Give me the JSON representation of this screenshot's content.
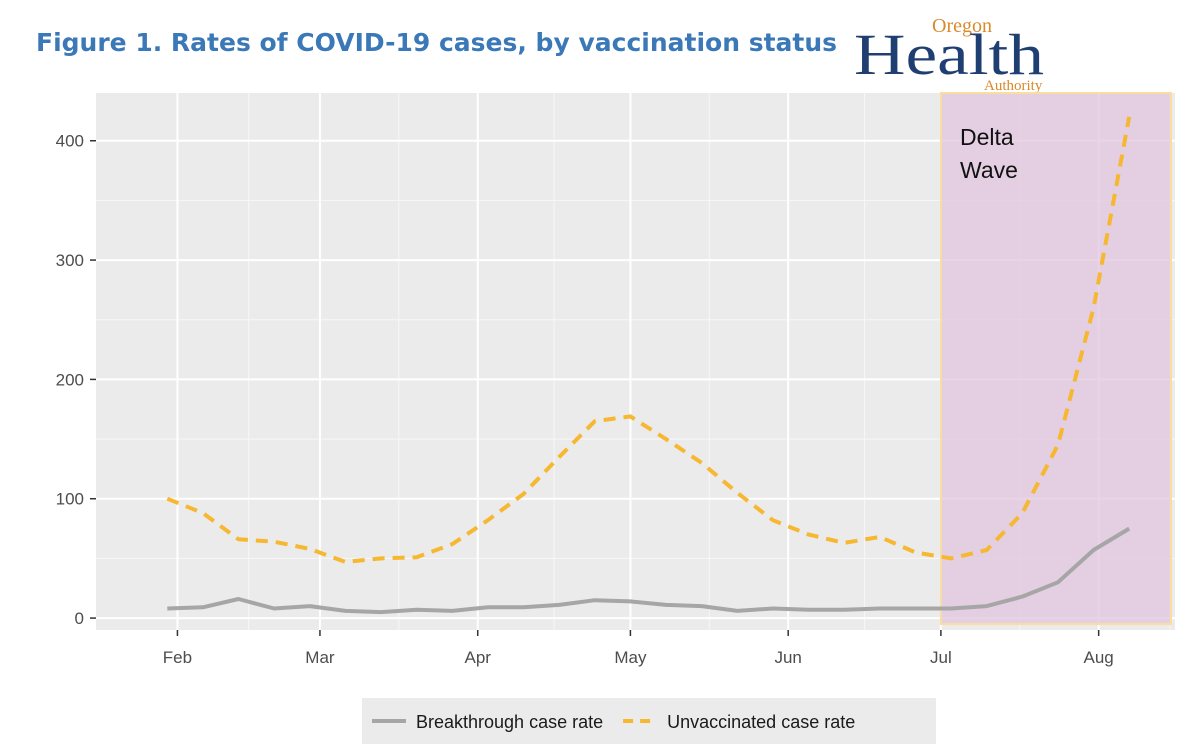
{
  "figure_title": "Figure 1. Rates of COVID-19 cases, by vaccination status",
  "logo": {
    "line1": "Oregon",
    "line2": "Health",
    "line3": "Authority",
    "color_primary": "#1f3f73",
    "color_accent": "#d98a2b"
  },
  "chart_data": {
    "type": "line",
    "x_unit": "date",
    "x": [
      "2021-01-30",
      "2021-02-06",
      "2021-02-13",
      "2021-02-20",
      "2021-02-27",
      "2021-03-06",
      "2021-03-13",
      "2021-03-20",
      "2021-03-27",
      "2021-04-03",
      "2021-04-10",
      "2021-04-17",
      "2021-04-24",
      "2021-05-01",
      "2021-05-08",
      "2021-05-15",
      "2021-05-22",
      "2021-05-29",
      "2021-06-05",
      "2021-06-12",
      "2021-06-19",
      "2021-06-26",
      "2021-07-03",
      "2021-07-10",
      "2021-07-17",
      "2021-07-24",
      "2021-07-31",
      "2021-08-07"
    ],
    "series": [
      {
        "name": "Breakthrough case rate",
        "color": "#a6a6a6",
        "style": "solid",
        "values": [
          8,
          9,
          16,
          8,
          10,
          6,
          5,
          7,
          6,
          9,
          9,
          11,
          15,
          14,
          11,
          10,
          6,
          8,
          7,
          7,
          8,
          8,
          8,
          10,
          18,
          30,
          57,
          75
        ]
      },
      {
        "name": "Unvaccinated case rate",
        "color": "#f6b731",
        "style": "dashed",
        "values": [
          100,
          88,
          66,
          64,
          58,
          47,
          50,
          51,
          62,
          82,
          104,
          135,
          165,
          169,
          150,
          130,
          105,
          82,
          70,
          63,
          68,
          55,
          50,
          57,
          88,
          145,
          260,
          420
        ]
      }
    ],
    "x_ticks": [
      {
        "date": "2021-02-01",
        "label": "Feb"
      },
      {
        "date": "2021-03-01",
        "label": "Mar"
      },
      {
        "date": "2021-04-01",
        "label": "Apr"
      },
      {
        "date": "2021-05-01",
        "label": "May"
      },
      {
        "date": "2021-06-01",
        "label": "Jun"
      },
      {
        "date": "2021-07-01",
        "label": "Jul"
      },
      {
        "date": "2021-08-01",
        "label": "Aug"
      }
    ],
    "xlim": [
      "2021-01-16",
      "2021-08-16"
    ],
    "ylim": [
      -10,
      440
    ],
    "y_ticks": [
      0,
      100,
      200,
      300,
      400
    ],
    "grid": true,
    "legend_position": "bottom",
    "shaded_region": {
      "start": "2021-07-01",
      "end": "2021-08-16",
      "label_line1": "Delta",
      "label_line2": "Wave",
      "fill": "#e2c4dd",
      "border": "#f8dfa0"
    },
    "title": "",
    "xlabel": "",
    "ylabel": ""
  }
}
